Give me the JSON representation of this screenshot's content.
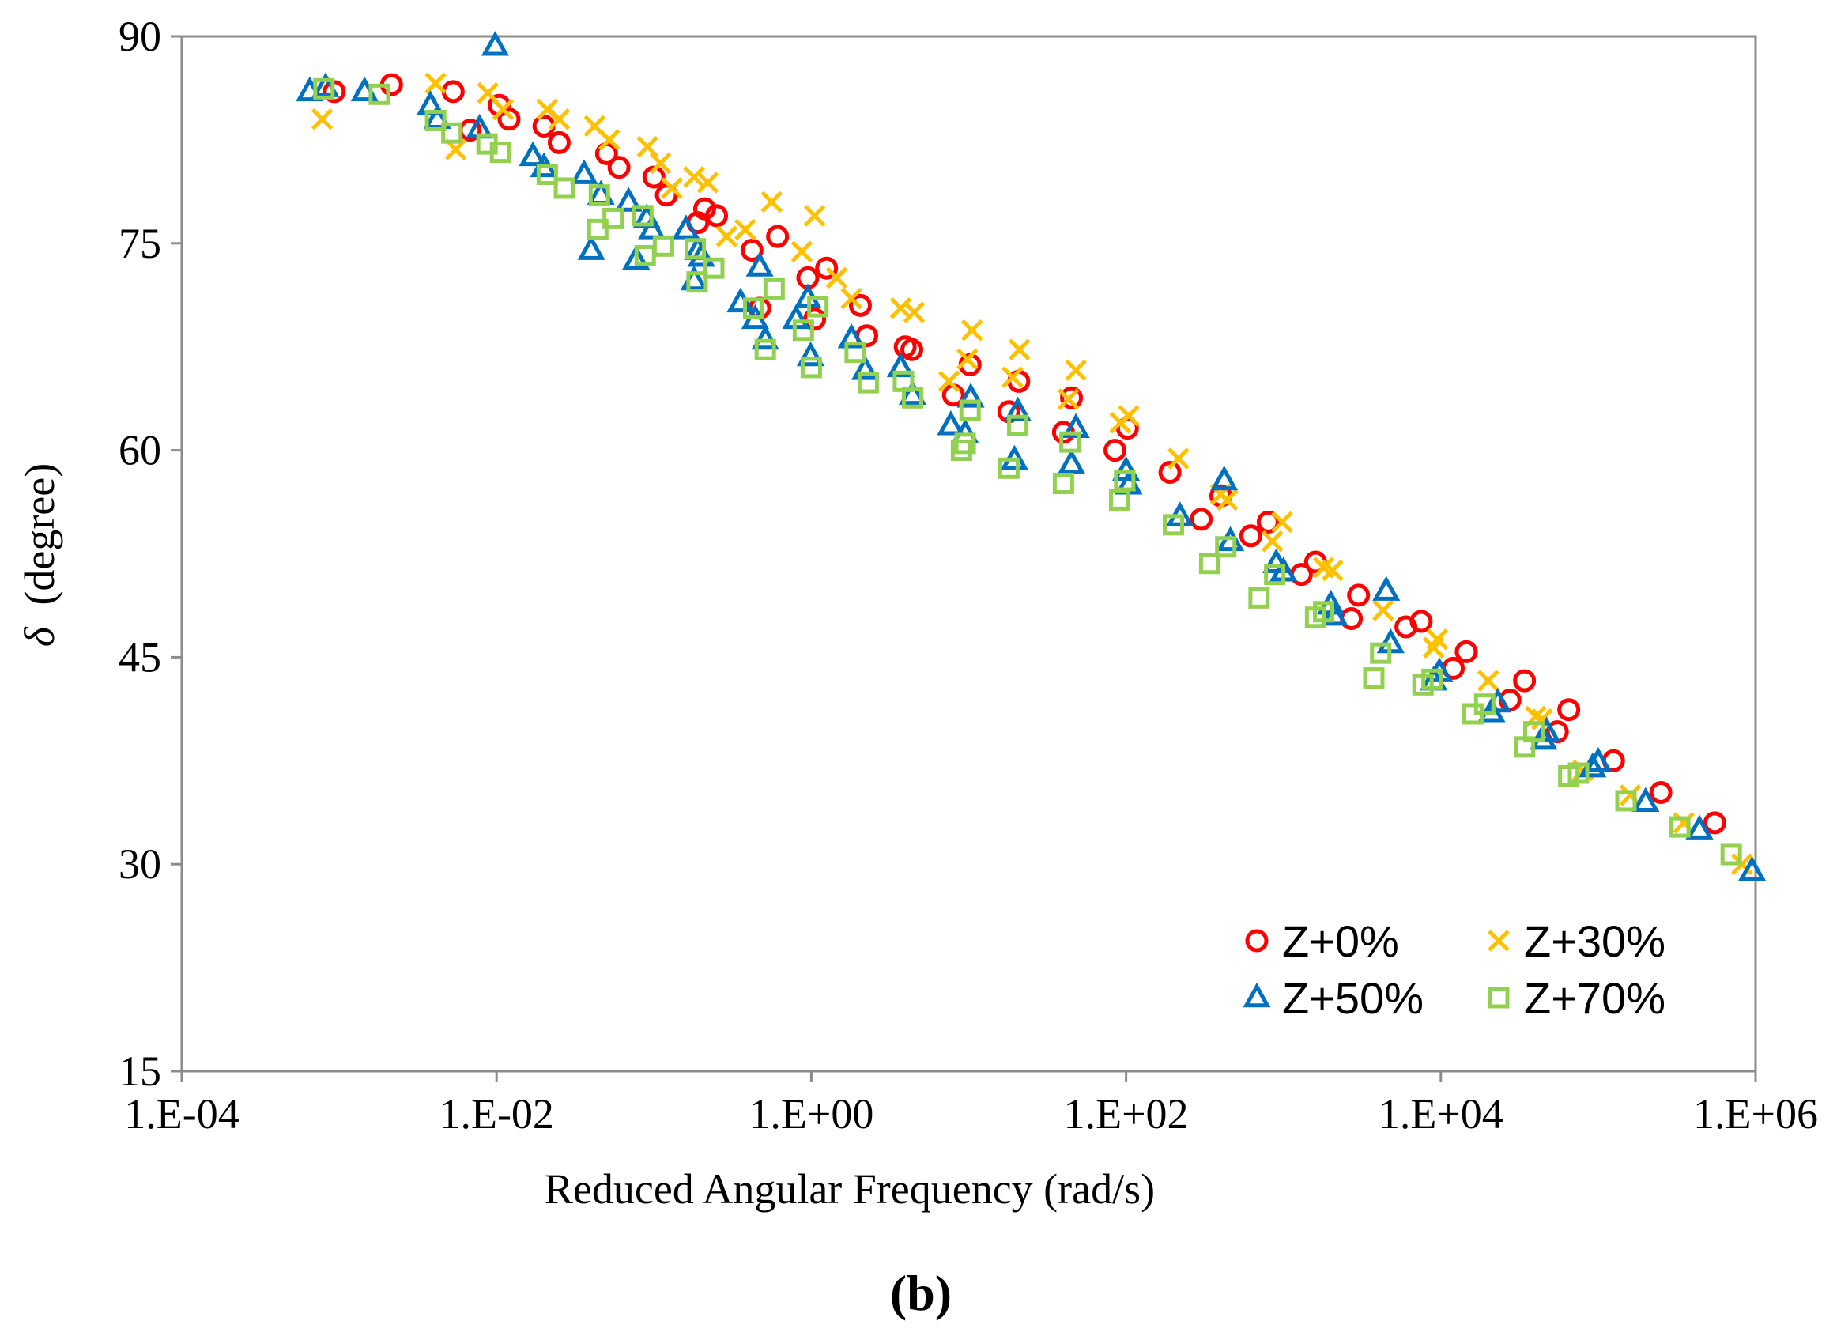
{
  "chart_data": {
    "type": "scatter",
    "title": "",
    "xlabel": "Reduced  Angular Frequency (rad/s)",
    "ylabel_symbol": "δ",
    "ylabel_unit": "(degree)",
    "x_scale": "log",
    "xlim": [
      0.0001,
      1000000
    ],
    "ylim": [
      15,
      90
    ],
    "x_ticks": [
      0.0001,
      0.01,
      1,
      100,
      10000,
      1000000
    ],
    "x_tick_labels": [
      "1.E-04",
      "1.E-02",
      "1.E+00",
      "1.E+02",
      "1.E+04",
      "1.E+06"
    ],
    "y_ticks": [
      15,
      30,
      45,
      60,
      75,
      90
    ],
    "y_tick_labels": [
      "15",
      "30",
      "45",
      "60",
      "75",
      "90"
    ],
    "grid": false,
    "legend_position": "bottom-right",
    "panel_label": "(b)",
    "series": [
      {
        "name": "Z+0%",
        "marker": "circle",
        "color": "#ff0000",
        "points": [
          [
            0.00093,
            86.0
          ],
          [
            0.00215,
            86.5
          ],
          [
            0.0053,
            86.0
          ],
          [
            0.0068,
            83.2
          ],
          [
            0.0104,
            85.0
          ],
          [
            0.012,
            84.0
          ],
          [
            0.02,
            83.5
          ],
          [
            0.025,
            82.3
          ],
          [
            0.05,
            81.5
          ],
          [
            0.06,
            80.5
          ],
          [
            0.1,
            79.8
          ],
          [
            0.12,
            78.5
          ],
          [
            0.19,
            76.5
          ],
          [
            0.21,
            77.5
          ],
          [
            0.25,
            77.0
          ],
          [
            0.42,
            74.5
          ],
          [
            0.47,
            70.3
          ],
          [
            0.61,
            75.5
          ],
          [
            0.95,
            72.5
          ],
          [
            1.05,
            69.5
          ],
          [
            1.25,
            73.2
          ],
          [
            2.05,
            70.5
          ],
          [
            2.25,
            68.3
          ],
          [
            3.95,
            67.5
          ],
          [
            4.35,
            67.3
          ],
          [
            8.0,
            64.0
          ],
          [
            10.2,
            66.2
          ],
          [
            18.0,
            62.8
          ],
          [
            20.8,
            65.0
          ],
          [
            40.0,
            61.3
          ],
          [
            45.0,
            63.8
          ],
          [
            85.0,
            60.0
          ],
          [
            102.0,
            61.6
          ],
          [
            190.0,
            58.4
          ],
          [
            300.0,
            55.0
          ],
          [
            400.0,
            56.7
          ],
          [
            620.0,
            53.8
          ],
          [
            800.0,
            54.8
          ],
          [
            1300.0,
            51.0
          ],
          [
            1600.0,
            51.9
          ],
          [
            2700.0,
            47.8
          ],
          [
            3000.0,
            49.5
          ],
          [
            6000.0,
            47.2
          ],
          [
            7500.0,
            47.6
          ],
          [
            12000.0,
            44.2
          ],
          [
            14500.0,
            45.4
          ],
          [
            27500.0,
            41.9
          ],
          [
            34000.0,
            43.3
          ],
          [
            55000.0,
            39.6
          ],
          [
            65000.0,
            41.2
          ],
          [
            125000.0,
            37.5
          ],
          [
            250000.0,
            35.2
          ],
          [
            550000.0,
            33.0
          ]
        ]
      },
      {
        "name": "Z+30%",
        "marker": "x",
        "color": "#ffc000",
        "points": [
          [
            0.00078,
            84.0
          ],
          [
            0.0041,
            86.6
          ],
          [
            0.0055,
            81.8
          ],
          [
            0.0088,
            85.9
          ],
          [
            0.011,
            84.7
          ],
          [
            0.021,
            84.7
          ],
          [
            0.025,
            84.0
          ],
          [
            0.042,
            83.5
          ],
          [
            0.052,
            82.5
          ],
          [
            0.091,
            82.0
          ],
          [
            0.11,
            80.8
          ],
          [
            0.13,
            79.0
          ],
          [
            0.18,
            79.8
          ],
          [
            0.22,
            79.4
          ],
          [
            0.29,
            75.5
          ],
          [
            0.38,
            76.0
          ],
          [
            0.56,
            78.0
          ],
          [
            0.87,
            74.4
          ],
          [
            1.05,
            77.0
          ],
          [
            1.45,
            72.5
          ],
          [
            1.8,
            71.0
          ],
          [
            3.7,
            70.3
          ],
          [
            4.5,
            70.0
          ],
          [
            7.5,
            65.0
          ],
          [
            9.8,
            66.6
          ],
          [
            10.5,
            68.7
          ],
          [
            19.0,
            65.3
          ],
          [
            21.0,
            67.3
          ],
          [
            43.0,
            63.7
          ],
          [
            48.0,
            65.8
          ],
          [
            92.0,
            62.0
          ],
          [
            104.0,
            62.5
          ],
          [
            215.0,
            59.4
          ],
          [
            400.0,
            56.8
          ],
          [
            440.0,
            56.4
          ],
          [
            850.0,
            53.4
          ],
          [
            980.0,
            54.8
          ],
          [
            1800.0,
            51.5
          ],
          [
            2050.0,
            51.3
          ],
          [
            4300.0,
            48.4
          ],
          [
            9000.0,
            45.7
          ],
          [
            9500.0,
            46.3
          ],
          [
            20000.0,
            43.3
          ],
          [
            40000.0,
            40.7
          ],
          [
            44000.0,
            40.5
          ],
          [
            80000.0,
            36.8
          ],
          [
            160000.0,
            35.0
          ],
          [
            350000.0,
            33.0
          ],
          [
            820000.0,
            30.0
          ]
        ]
      },
      {
        "name": "Z+50%",
        "marker": "triangle",
        "color": "#0070c0",
        "points": [
          [
            0.00065,
            86.0
          ],
          [
            0.00082,
            86.3
          ],
          [
            0.00145,
            86.0
          ],
          [
            0.0038,
            85.0
          ],
          [
            0.0042,
            84.0
          ],
          [
            0.0078,
            83.3
          ],
          [
            0.0098,
            89.3
          ],
          [
            0.017,
            81.3
          ],
          [
            0.02,
            80.5
          ],
          [
            0.036,
            80.0
          ],
          [
            0.04,
            74.5
          ],
          [
            0.046,
            78.5
          ],
          [
            0.069,
            78.0
          ],
          [
            0.077,
            73.8
          ],
          [
            0.09,
            76.8
          ],
          [
            0.097,
            76.0
          ],
          [
            0.16,
            76.0
          ],
          [
            0.18,
            72.3
          ],
          [
            0.19,
            74.5
          ],
          [
            0.2,
            74.0
          ],
          [
            0.355,
            70.7
          ],
          [
            0.44,
            69.5
          ],
          [
            0.47,
            73.3
          ],
          [
            0.51,
            68.0
          ],
          [
            0.8,
            69.5
          ],
          [
            0.95,
            71.0
          ],
          [
            0.99,
            66.8
          ],
          [
            1.8,
            68.1
          ],
          [
            2.2,
            65.8
          ],
          [
            3.7,
            66.0
          ],
          [
            4.4,
            64.0
          ],
          [
            7.7,
            61.8
          ],
          [
            9.5,
            61.2
          ],
          [
            10.3,
            63.8
          ],
          [
            19.5,
            59.3
          ],
          [
            20.5,
            62.8
          ],
          [
            45.0,
            59.0
          ],
          [
            48.0,
            61.6
          ],
          [
            100.0,
            58.5
          ],
          [
            104.0,
            57.5
          ],
          [
            220.0,
            55.2
          ],
          [
            420.0,
            57.8
          ],
          [
            460.0,
            53.4
          ],
          [
            900.0,
            51.8
          ],
          [
            1000.0,
            51.2
          ],
          [
            2000.0,
            48.8
          ],
          [
            2100.0,
            48.0
          ],
          [
            4500.0,
            49.8
          ],
          [
            4800.0,
            46.0
          ],
          [
            9000.0,
            43.3
          ],
          [
            9800.0,
            43.9
          ],
          [
            21000.0,
            41.0
          ],
          [
            23000.0,
            41.7
          ],
          [
            45000.0,
            39.0
          ],
          [
            47000.0,
            39.6
          ],
          [
            92000.0,
            37.0
          ],
          [
            100000.0,
            37.4
          ],
          [
            200000.0,
            34.5
          ],
          [
            440000.0,
            32.5
          ],
          [
            950000.0,
            29.5
          ]
        ]
      },
      {
        "name": "Z+70%",
        "marker": "square",
        "color": "#92d050",
        "points": [
          [
            0.0008,
            86.2
          ],
          [
            0.0018,
            85.8
          ],
          [
            0.0041,
            83.9
          ],
          [
            0.0052,
            83.0
          ],
          [
            0.0087,
            82.2
          ],
          [
            0.0106,
            81.6
          ],
          [
            0.021,
            80.0
          ],
          [
            0.027,
            79.0
          ],
          [
            0.044,
            76.0
          ],
          [
            0.045,
            78.5
          ],
          [
            0.055,
            76.8
          ],
          [
            0.085,
            77.0
          ],
          [
            0.088,
            74.1
          ],
          [
            0.115,
            74.8
          ],
          [
            0.183,
            74.6
          ],
          [
            0.188,
            72.2
          ],
          [
            0.24,
            73.2
          ],
          [
            0.43,
            70.3
          ],
          [
            0.51,
            67.3
          ],
          [
            0.58,
            71.7
          ],
          [
            0.89,
            68.7
          ],
          [
            1.0,
            66.0
          ],
          [
            1.1,
            70.4
          ],
          [
            1.9,
            67.1
          ],
          [
            2.3,
            64.9
          ],
          [
            3.85,
            65.0
          ],
          [
            4.4,
            63.8
          ],
          [
            9.0,
            60.0
          ],
          [
            9.5,
            60.5
          ],
          [
            10.2,
            62.9
          ],
          [
            18.0,
            58.7
          ],
          [
            20.5,
            61.8
          ],
          [
            40.0,
            57.6
          ],
          [
            44.0,
            60.6
          ],
          [
            91.0,
            56.4
          ],
          [
            98.0,
            57.8
          ],
          [
            200.0,
            54.6
          ],
          [
            340.0,
            51.8
          ],
          [
            430.0,
            53.0
          ],
          [
            700.0,
            49.3
          ],
          [
            880.0,
            51.0
          ],
          [
            1600.0,
            47.9
          ],
          [
            1800.0,
            48.3
          ],
          [
            3750.0,
            43.5
          ],
          [
            4150.0,
            45.3
          ],
          [
            7700.0,
            43.0
          ],
          [
            8800.0,
            43.4
          ],
          [
            16000.0,
            40.9
          ],
          [
            19000.0,
            41.6
          ],
          [
            34000.0,
            38.5
          ],
          [
            39000.0,
            39.6
          ],
          [
            65000.0,
            36.4
          ],
          [
            75000.0,
            36.6
          ],
          [
            150000.0,
            34.6
          ],
          [
            330000.0,
            32.7
          ],
          [
            700000.0,
            30.7
          ]
        ]
      }
    ]
  }
}
